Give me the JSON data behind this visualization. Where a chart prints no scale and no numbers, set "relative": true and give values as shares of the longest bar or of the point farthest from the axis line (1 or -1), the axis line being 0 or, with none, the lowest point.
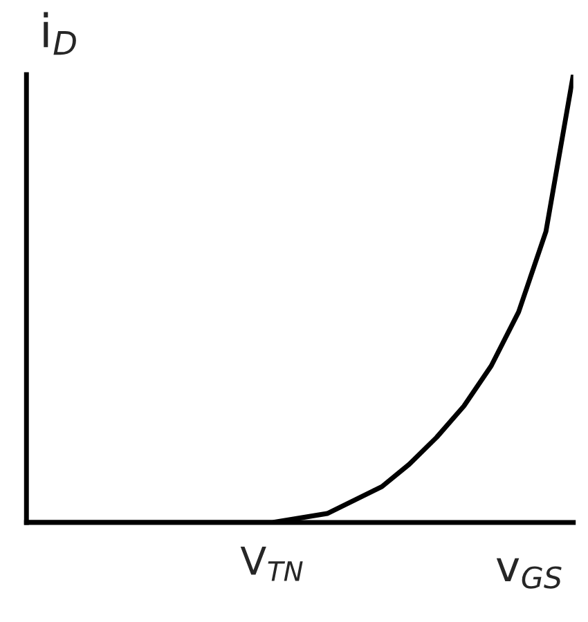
{
  "chart_data": {
    "type": "line",
    "relative": true,
    "xlabel": "v$_{GS}$",
    "ylabel": "i$_{D}$",
    "categories": [
      null,
      null,
      null,
      null,
      null,
      null,
      null,
      null,
      null,
      null,
      null,
      null,
      null,
      null,
      null,
      null,
      null,
      null,
      null,
      null,
      null
    ],
    "series": [
      {
        "color": "#000000",
        "values": [
          0,
          0,
          0,
          0,
          0,
          0,
          0,
          0,
          0,
          0,
          0.01,
          0.02,
          0.05,
          0.08,
          0.13,
          0.19,
          0.26,
          0.35,
          0.47,
          0.65,
          1
        ]
      }
    ],
    "annotations": [
      "V$_{TN}$"
    ],
    "grid": false,
    "legend": false
  }
}
